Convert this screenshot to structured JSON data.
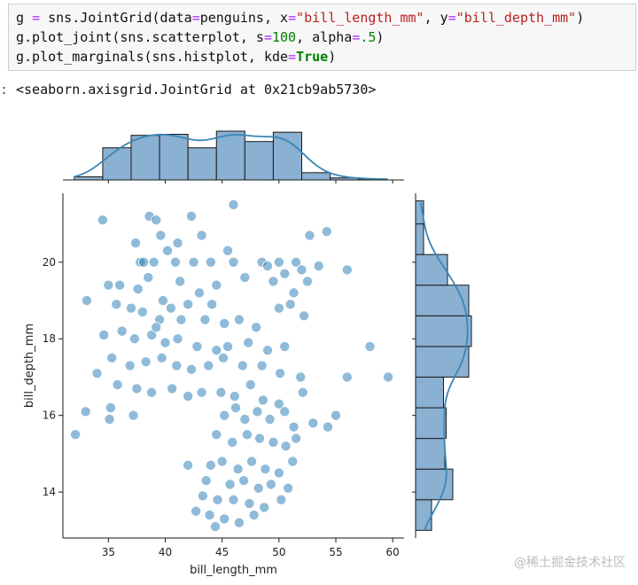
{
  "code": {
    "line1": {
      "a": "g ",
      "op": "=",
      "b": " sns.JointGrid(data",
      "op2": "=",
      "c": "penguins, x",
      "op3": "=",
      "s1": "\"bill_length_mm\"",
      "d": ", y",
      "op4": "=",
      "s2": "\"bill_depth_mm\"",
      "e": ")"
    },
    "line2": {
      "a": "g.plot_joint(sns.scatterplot, s",
      "op": "=",
      "n1": "100",
      "b": ", alpha",
      "op2": "=",
      "n2": ".5",
      "c": ")"
    },
    "line3": {
      "a": "g.plot_marginals(sns.histplot, kde",
      "op": "=",
      "kw": "True",
      "b": ")"
    }
  },
  "output": {
    "prompt": ":",
    "text": "<seaborn.axisgrid.JointGrid at 0x21cb9ab5730>"
  },
  "watermark": "@稀土掘金技术社区",
  "colors": {
    "point": "#1f77b4",
    "bar_fill": "#8ab0d2",
    "bar_edge": "#1a1a1a",
    "kde": "#3a86b8"
  },
  "chart_data": {
    "type": "scatter",
    "xlabel": "bill_length_mm",
    "ylabel": "bill_depth_mm",
    "xlim": [
      31,
      61
    ],
    "ylim": [
      12.8,
      21.8
    ],
    "xticks": [
      35,
      40,
      45,
      50,
      55,
      60
    ],
    "yticks": [
      14,
      16,
      18,
      20
    ],
    "points": [
      [
        34.5,
        21.1
      ],
      [
        38.6,
        21.2
      ],
      [
        39.2,
        21.1
      ],
      [
        42.3,
        21.2
      ],
      [
        46.0,
        21.5
      ],
      [
        39.6,
        20.7
      ],
      [
        40.2,
        20.3
      ],
      [
        43.2,
        20.7
      ],
      [
        54.2,
        20.8
      ],
      [
        37.8,
        20.0
      ],
      [
        38.1,
        20.0
      ],
      [
        39.0,
        20.0
      ],
      [
        40.9,
        20.0
      ],
      [
        42.5,
        20.0
      ],
      [
        44.0,
        20.0
      ],
      [
        46.0,
        20.0
      ],
      [
        48.5,
        20.0
      ],
      [
        49.0,
        19.9
      ],
      [
        50.0,
        20.0
      ],
      [
        51.5,
        20.0
      ],
      [
        52.0,
        19.8
      ],
      [
        56.0,
        19.8
      ],
      [
        45.5,
        20.3
      ],
      [
        41.1,
        20.5
      ],
      [
        37.4,
        20.5
      ],
      [
        52.7,
        20.7
      ],
      [
        36.0,
        19.4
      ],
      [
        37.6,
        19.3
      ],
      [
        38.5,
        19.6
      ],
      [
        39.8,
        19.0
      ],
      [
        41.3,
        19.5
      ],
      [
        43.0,
        19.2
      ],
      [
        44.5,
        19.4
      ],
      [
        47.0,
        19.6
      ],
      [
        49.5,
        19.5
      ],
      [
        50.5,
        19.7
      ],
      [
        52.5,
        19.5
      ],
      [
        53.5,
        19.9
      ],
      [
        35.0,
        19.4
      ],
      [
        51.3,
        19.2
      ],
      [
        33.1,
        19.0
      ],
      [
        35.7,
        18.9
      ],
      [
        37.0,
        18.8
      ],
      [
        38.0,
        18.7
      ],
      [
        39.5,
        18.5
      ],
      [
        40.5,
        18.8
      ],
      [
        41.4,
        18.5
      ],
      [
        42.0,
        18.9
      ],
      [
        43.5,
        18.5
      ],
      [
        44.1,
        18.9
      ],
      [
        45.2,
        18.4
      ],
      [
        46.5,
        18.5
      ],
      [
        48.0,
        18.3
      ],
      [
        50.0,
        18.8
      ],
      [
        51.0,
        18.9
      ],
      [
        52.2,
        18.6
      ],
      [
        34.6,
        18.1
      ],
      [
        36.2,
        18.2
      ],
      [
        37.3,
        18.0
      ],
      [
        38.8,
        18.1
      ],
      [
        40.0,
        17.9
      ],
      [
        41.1,
        18.0
      ],
      [
        42.8,
        17.8
      ],
      [
        44.5,
        17.7
      ],
      [
        45.5,
        17.8
      ],
      [
        47.3,
        17.9
      ],
      [
        49.0,
        17.7
      ],
      [
        50.5,
        17.8
      ],
      [
        58.0,
        17.8
      ],
      [
        39.2,
        18.3
      ],
      [
        35.3,
        17.5
      ],
      [
        36.9,
        17.3
      ],
      [
        38.3,
        17.4
      ],
      [
        39.7,
        17.5
      ],
      [
        41.0,
        17.3
      ],
      [
        42.3,
        17.2
      ],
      [
        43.8,
        17.3
      ],
      [
        45.1,
        17.5
      ],
      [
        46.8,
        17.3
      ],
      [
        48.5,
        17.3
      ],
      [
        50.1,
        17.1
      ],
      [
        51.9,
        17.0
      ],
      [
        56.0,
        17.0
      ],
      [
        59.6,
        17.0
      ],
      [
        34.0,
        17.1
      ],
      [
        35.8,
        16.8
      ],
      [
        37.5,
        16.7
      ],
      [
        38.8,
        16.6
      ],
      [
        40.6,
        16.7
      ],
      [
        42.0,
        16.5
      ],
      [
        43.2,
        16.6
      ],
      [
        44.9,
        16.6
      ],
      [
        46.1,
        16.5
      ],
      [
        47.5,
        16.8
      ],
      [
        48.6,
        16.4
      ],
      [
        50.0,
        16.3
      ],
      [
        52.1,
        16.6
      ],
      [
        33.0,
        16.1
      ],
      [
        35.2,
        16.2
      ],
      [
        37.2,
        16.0
      ],
      [
        45.2,
        16.0
      ],
      [
        46.2,
        16.2
      ],
      [
        47.0,
        15.9
      ],
      [
        48.1,
        16.1
      ],
      [
        49.2,
        15.9
      ],
      [
        50.5,
        16.1
      ],
      [
        51.3,
        15.7
      ],
      [
        53.0,
        15.8
      ],
      [
        55.0,
        16.0
      ],
      [
        32.1,
        15.5
      ],
      [
        35.1,
        15.9
      ],
      [
        44.5,
        15.5
      ],
      [
        45.9,
        15.3
      ],
      [
        47.2,
        15.5
      ],
      [
        48.3,
        15.4
      ],
      [
        49.5,
        15.3
      ],
      [
        50.6,
        15.2
      ],
      [
        51.5,
        15.4
      ],
      [
        54.3,
        15.7
      ],
      [
        44.0,
        14.7
      ],
      [
        45.0,
        14.8
      ],
      [
        46.4,
        14.6
      ],
      [
        47.6,
        14.8
      ],
      [
        48.8,
        14.6
      ],
      [
        50.0,
        14.5
      ],
      [
        51.2,
        14.8
      ],
      [
        42.0,
        14.7
      ],
      [
        43.6,
        14.3
      ],
      [
        45.7,
        14.2
      ],
      [
        46.9,
        14.3
      ],
      [
        48.2,
        14.1
      ],
      [
        49.3,
        14.2
      ],
      [
        50.8,
        14.1
      ],
      [
        43.3,
        13.9
      ],
      [
        44.6,
        13.8
      ],
      [
        46.0,
        13.8
      ],
      [
        47.4,
        13.7
      ],
      [
        48.7,
        13.6
      ],
      [
        50.2,
        13.8
      ],
      [
        43.9,
        13.4
      ],
      [
        45.2,
        13.3
      ],
      [
        46.5,
        13.2
      ],
      [
        47.8,
        13.4
      ],
      [
        42.7,
        13.5
      ],
      [
        44.4,
        13.1
      ]
    ],
    "marginal_x": {
      "bin_edges": [
        32,
        34.5,
        37,
        39.5,
        42,
        44.5,
        47,
        49.5,
        52,
        54.5,
        57,
        59.5
      ],
      "counts": [
        3,
        31,
        43,
        44,
        31,
        47,
        37,
        46,
        7,
        2,
        1
      ]
    },
    "marginal_y": {
      "bin_edges": [
        13.0,
        13.8,
        14.6,
        15.4,
        16.2,
        17.0,
        17.8,
        18.6,
        19.4,
        20.2,
        21.0,
        21.6
      ],
      "counts": [
        12,
        28,
        22,
        23,
        21,
        40,
        42,
        40,
        24,
        6,
        6
      ]
    }
  }
}
